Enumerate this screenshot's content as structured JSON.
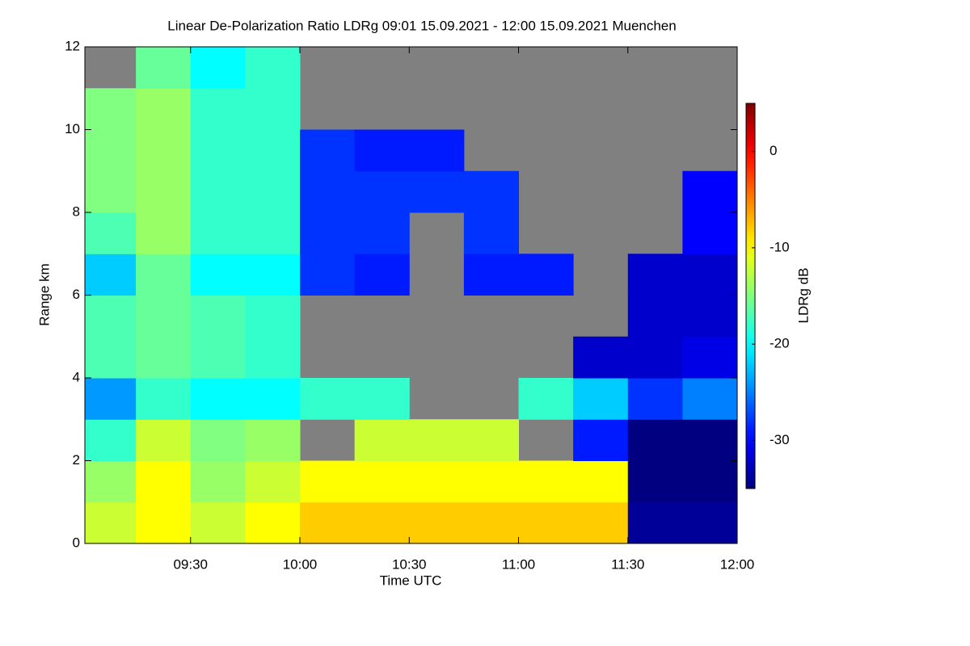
{
  "chart_data": {
    "type": "heatmap",
    "title": "Linear De-Polarization Ratio LDRg   09:01 15.09.2021 - 12:00 15.09.2021 Muenchen",
    "x_label": "Time UTC",
    "y_label": "Range km",
    "colorbar_label": "LDRg dB",
    "colormap": "jet",
    "background": "#808080",
    "x": [
      541,
      555,
      570,
      585,
      600,
      615,
      630,
      645,
      660,
      675,
      690,
      705,
      720
    ],
    "y": [
      0,
      1,
      2,
      3,
      4,
      5,
      6,
      7,
      8,
      9,
      10,
      11,
      12
    ],
    "z": [
      [
        -12,
        -10,
        -12,
        -10,
        -8,
        -8,
        -8,
        -8,
        -8,
        -8,
        -34,
        -34
      ],
      [
        -14,
        -10,
        -14,
        -12,
        -10,
        -10,
        -10,
        -10,
        -10,
        -10,
        -35,
        -35
      ],
      [
        -18,
        -12,
        -15,
        -14,
        null,
        -12,
        -12,
        -12,
        null,
        -29,
        -35,
        -35
      ],
      [
        -24,
        -18,
        -20,
        -20,
        -18,
        -18,
        null,
        null,
        -18,
        -22,
        -28,
        -25
      ],
      [
        -17,
        -16,
        -17,
        -18,
        null,
        null,
        null,
        null,
        null,
        -32,
        -32,
        -31
      ],
      [
        -17,
        -16,
        -17,
        -18,
        null,
        null,
        null,
        null,
        null,
        null,
        -32,
        -32
      ],
      [
        -22,
        -16,
        -20,
        -20,
        -28,
        -29,
        null,
        -29,
        -29,
        null,
        -32,
        -32
      ],
      [
        -17,
        -14,
        -18,
        -18,
        -28,
        -28,
        null,
        -28,
        null,
        null,
        null,
        -30
      ],
      [
        -15,
        -14,
        -18,
        -18,
        -28,
        -28,
        -28,
        -28,
        null,
        null,
        null,
        -30
      ],
      [
        -15,
        -14,
        -18,
        -18,
        -28,
        -29,
        -29,
        null,
        null,
        null,
        null,
        null
      ],
      [
        -15,
        -14,
        -18,
        -18,
        null,
        null,
        null,
        null,
        null,
        null,
        null,
        null
      ],
      [
        null,
        -16,
        -20,
        -18,
        null,
        null,
        null,
        null,
        null,
        null,
        null,
        null
      ]
    ],
    "xlim": [
      541,
      720
    ],
    "ylim": [
      0,
      12
    ],
    "xticks": [
      {
        "value": 570,
        "label": "09:30"
      },
      {
        "value": 600,
        "label": "10:00"
      },
      {
        "value": 630,
        "label": "10:30"
      },
      {
        "value": 660,
        "label": "11:00"
      },
      {
        "value": 690,
        "label": "11:30"
      },
      {
        "value": 720,
        "label": "12:00"
      }
    ],
    "yticks": [
      0,
      2,
      4,
      6,
      8,
      10,
      12
    ],
    "clim": [
      -35,
      5
    ],
    "colorbar_ticks": [
      0,
      -10,
      -20,
      -30
    ]
  }
}
